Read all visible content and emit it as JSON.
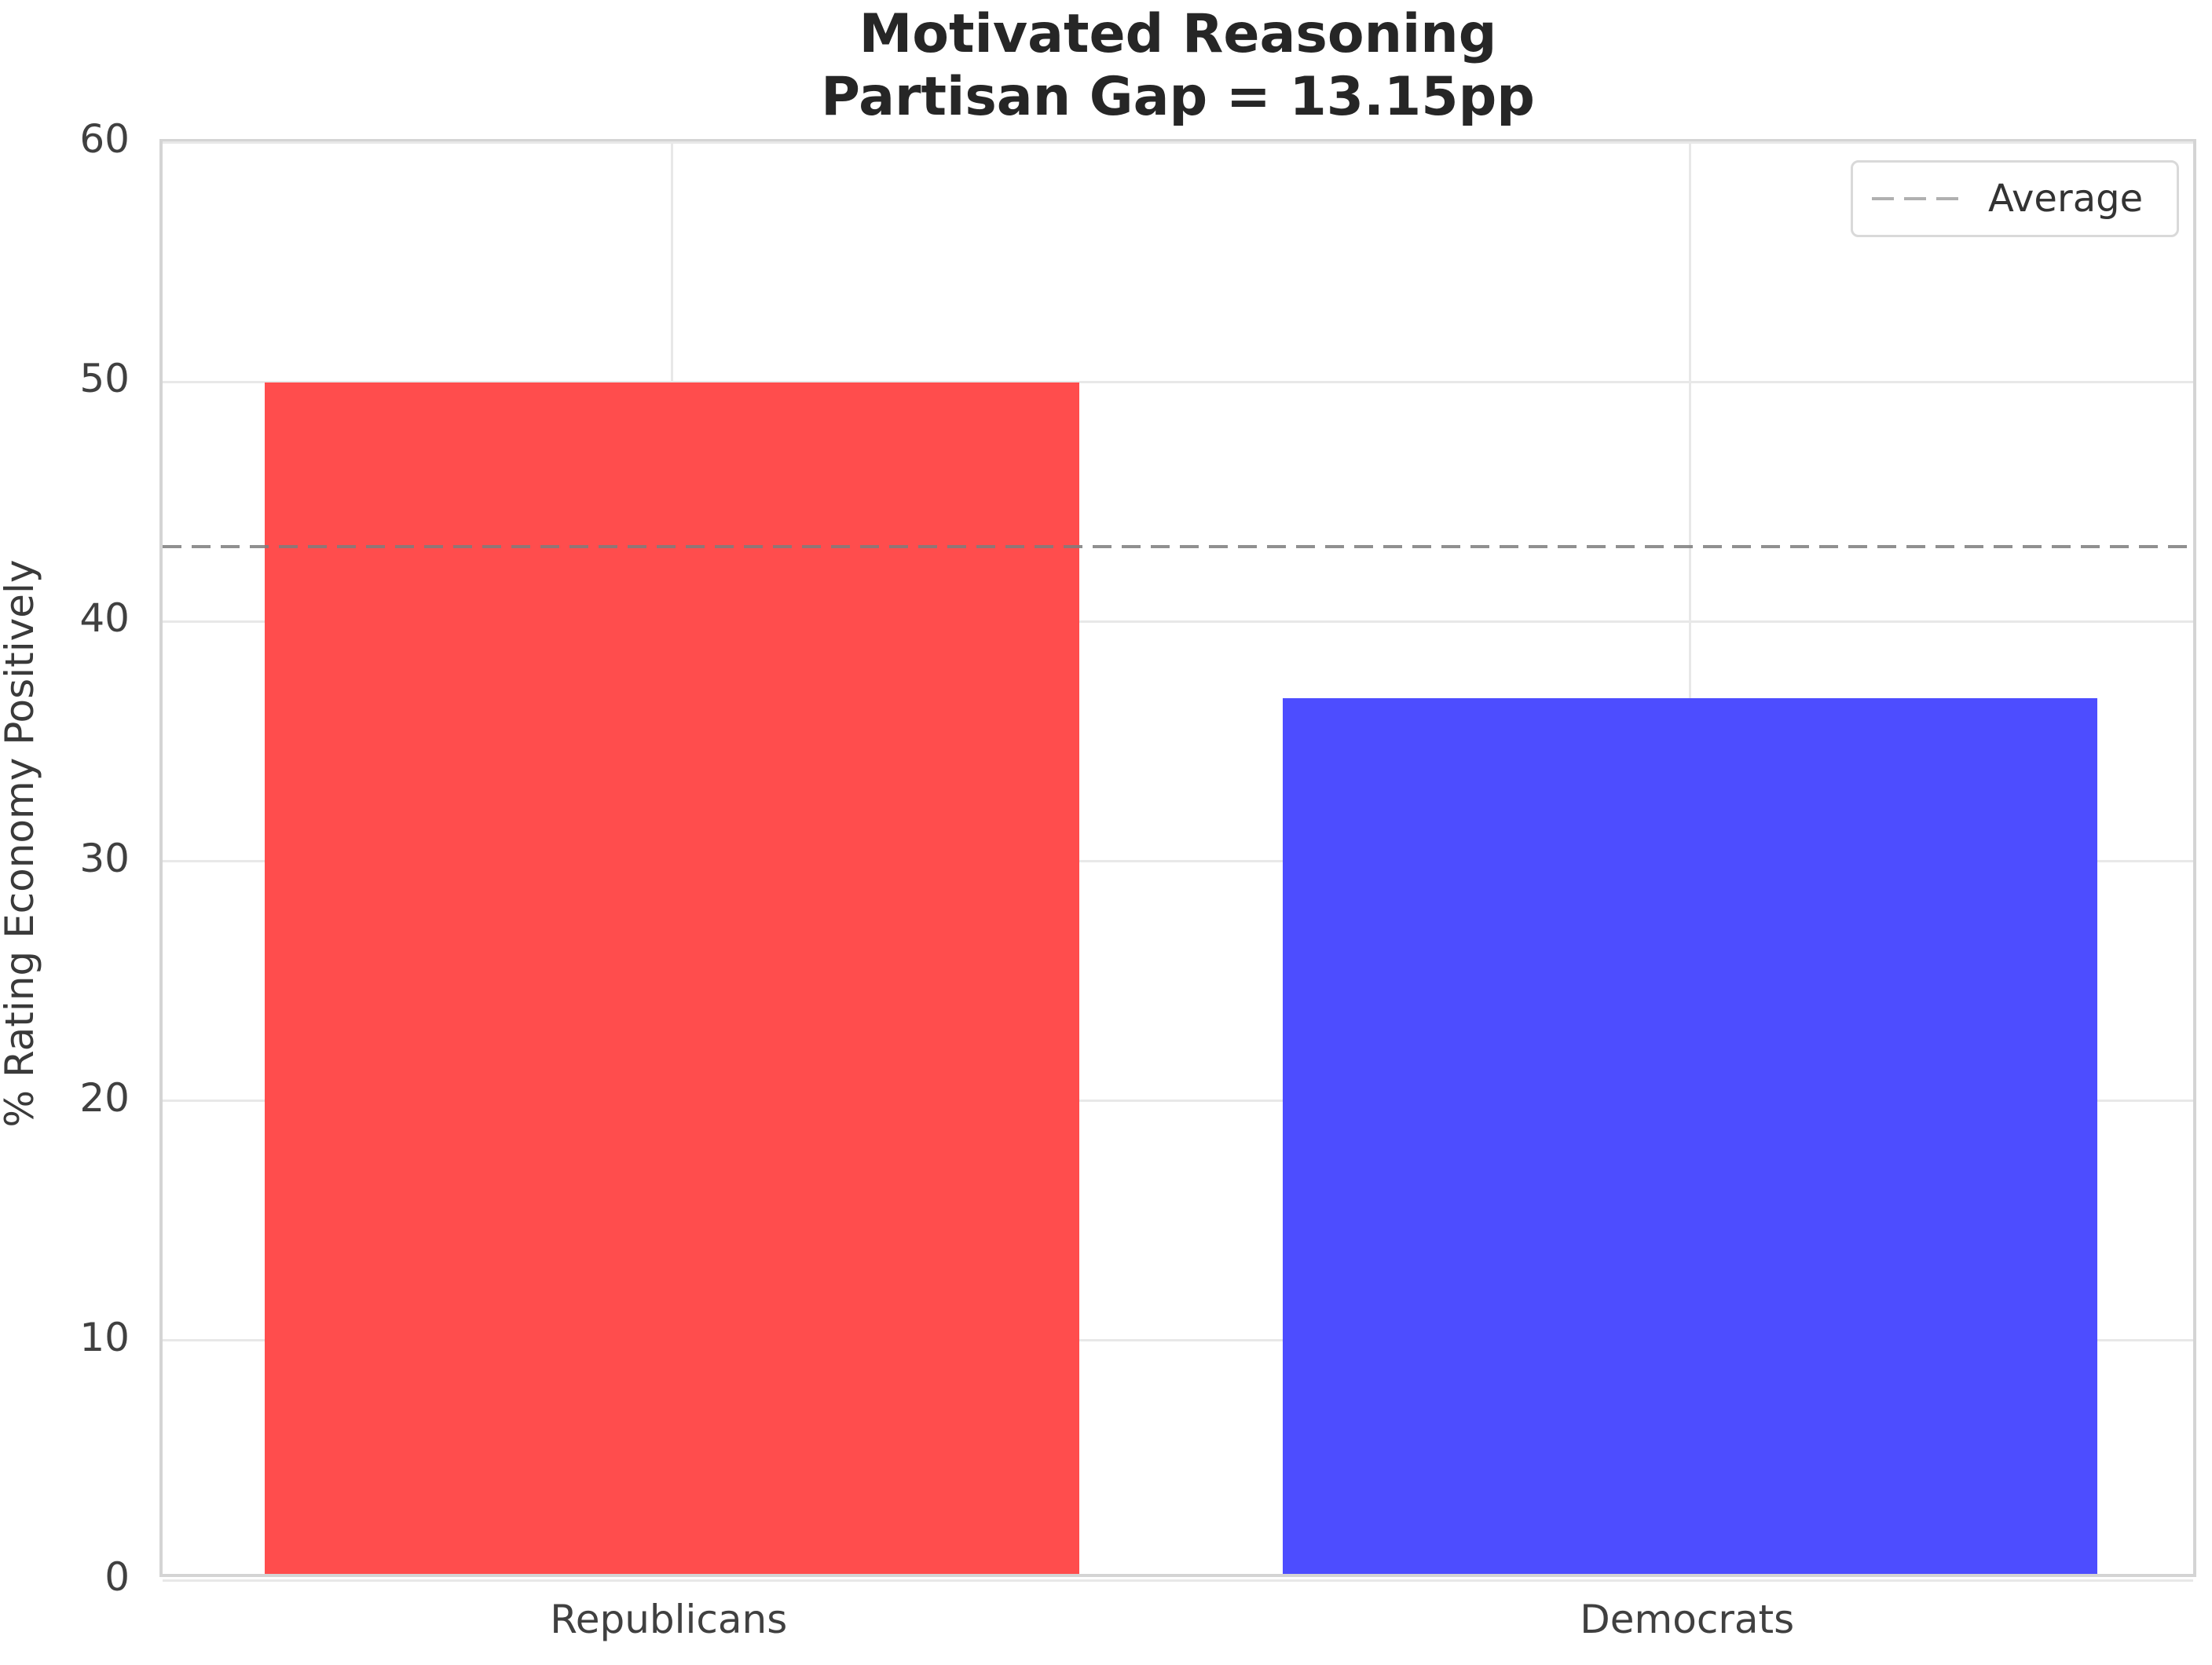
{
  "title": {
    "line1": "Motivated Reasoning",
    "line2": "Partisan Gap = 13.15pp"
  },
  "legend": {
    "label": "Average"
  },
  "chart_data": {
    "type": "bar",
    "title": "Motivated Reasoning",
    "subtitle": "Partisan Gap = 13.15pp",
    "categories": [
      "Republicans",
      "Democrats"
    ],
    "values": [
      49.7,
      36.55
    ],
    "bar_colors": [
      "#ff4d4d",
      "#4d4dff"
    ],
    "partisan_gap_pp": 13.15,
    "average_value": 43.13,
    "average_line": {
      "style": "dashed",
      "color": "#7d7d7d",
      "label": "Average"
    },
    "xlabel": "",
    "ylabel": "% Rating Economy Positively",
    "ylim": [
      0,
      60
    ],
    "yticks": [
      0,
      10,
      20,
      30,
      40,
      50,
      60
    ],
    "grid": true,
    "grid_color": "#e8e8e8",
    "legend_position": "upper right",
    "bar_width_fraction": 0.8
  }
}
